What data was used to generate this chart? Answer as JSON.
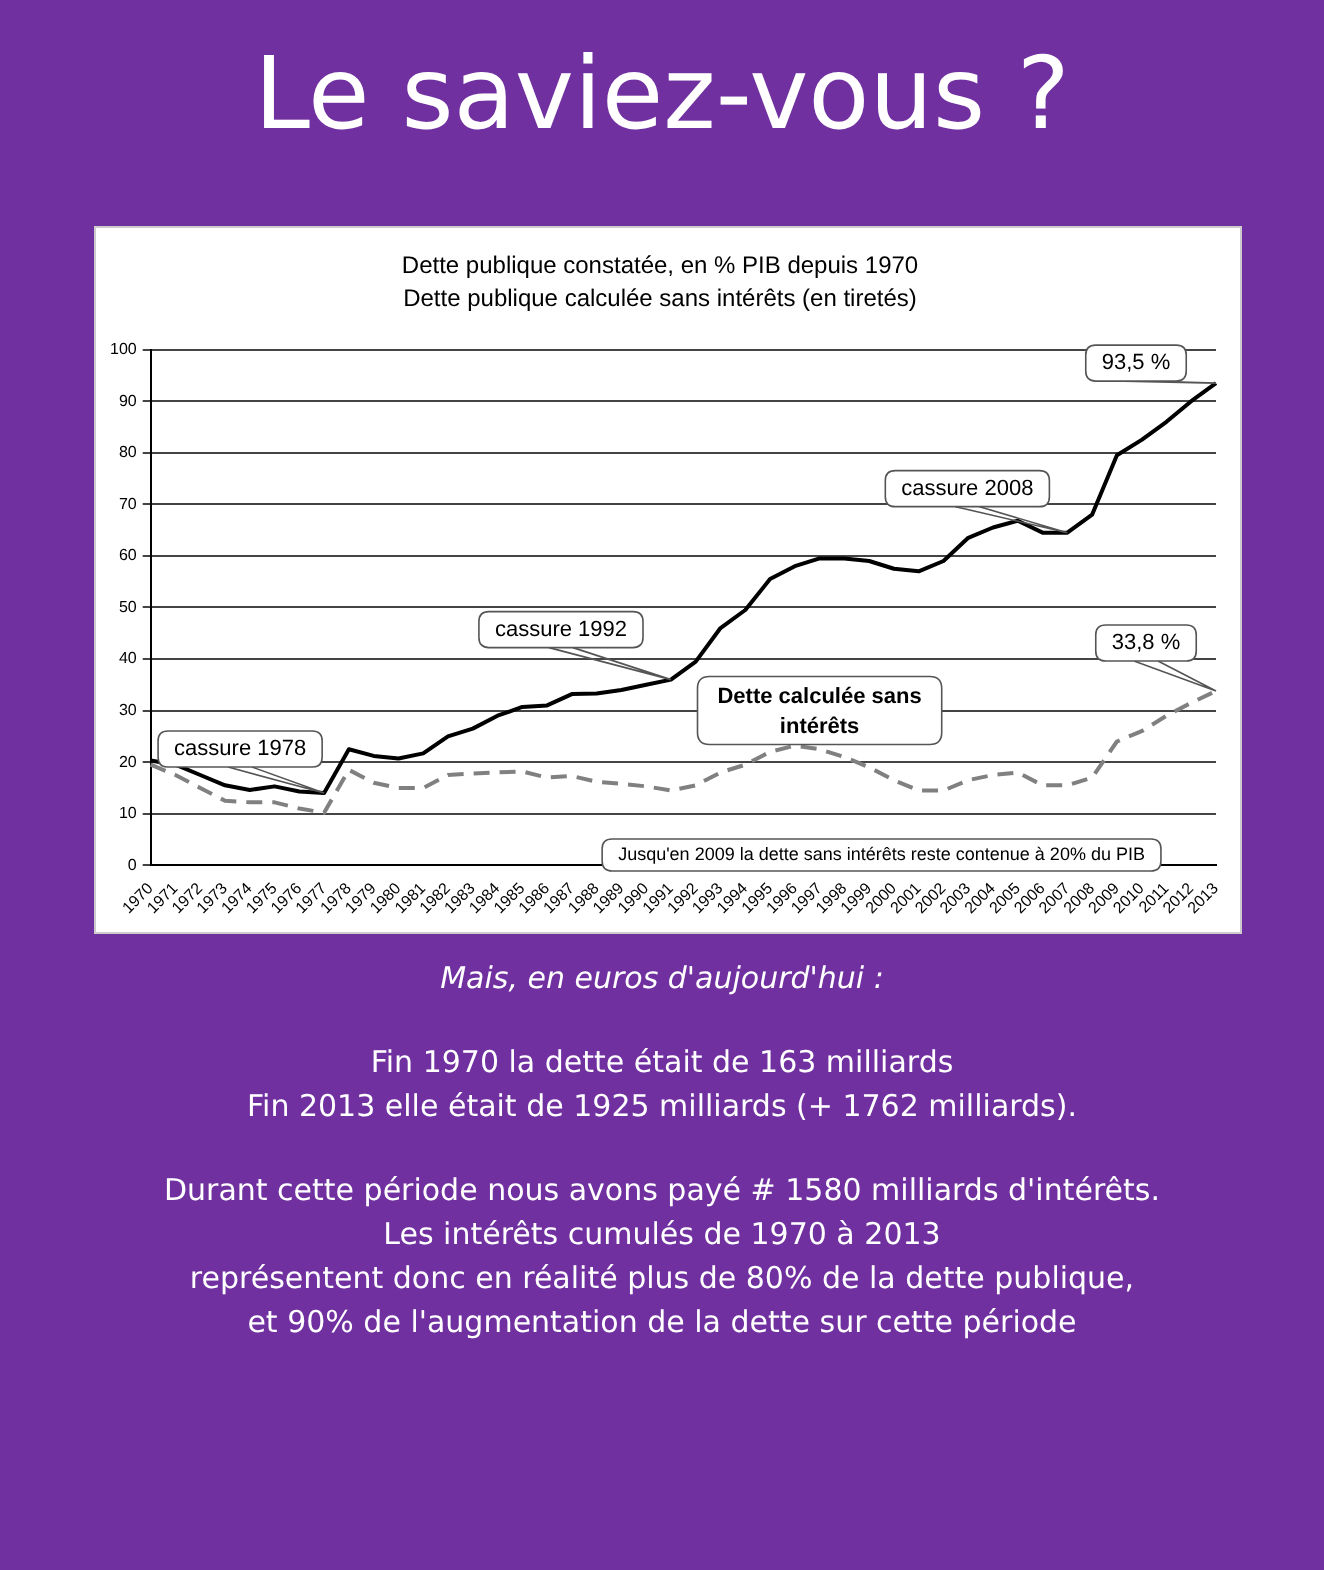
{
  "chart_data": {
    "type": "line",
    "title": "Dette publique constatée, en % PIB depuis 1970",
    "subtitle": "Dette publique calculée sans intérêts (en tiretés)",
    "categories": [
      "1970",
      "1971",
      "1972",
      "1973",
      "1974",
      "1975",
      "1976",
      "1977",
      "1978",
      "1979",
      "1980",
      "1981",
      "1982",
      "1983",
      "1984",
      "1985",
      "1986",
      "1987",
      "1988",
      "1989",
      "1990",
      "1991",
      "1992",
      "1993",
      "1994",
      "1995",
      "1996",
      "1997",
      "1998",
      "1999",
      "2000",
      "2001",
      "2002",
      "2003",
      "2004",
      "2005",
      "2006",
      "2007",
      "2008",
      "2009",
      "2010",
      "2011",
      "2012",
      "2013"
    ],
    "series": [
      {
        "color": "#000000",
        "line_style": "solid",
        "values": [
          20.3,
          19.5,
          17.5,
          15.5,
          14.6,
          15.3,
          14.3,
          14.0,
          22.5,
          21.2,
          20.7,
          21.7,
          25.0,
          26.5,
          29.0,
          30.7,
          31.0,
          33.2,
          33.3,
          34.0,
          35.0,
          36.0,
          39.5,
          46,
          49.5,
          55.5,
          58,
          59.5,
          59.5,
          59,
          57.5,
          57,
          59,
          63.5,
          65.5,
          66.8,
          64.5,
          64.5,
          68,
          79.5,
          82.5,
          86,
          90,
          93.5
        ]
      },
      {
        "name": "Dette calculée sans intérêts",
        "color": "#808080",
        "line_style": "dashed",
        "values": [
          19.5,
          17.5,
          15,
          12.5,
          12.2,
          12.2,
          11,
          10.2,
          18.5,
          16,
          15,
          15,
          17.5,
          17.8,
          18,
          18.2,
          17,
          17.3,
          16.2,
          15.8,
          15.3,
          14.5,
          15.5,
          18,
          19.5,
          22,
          23.2,
          22.5,
          21,
          19,
          16.5,
          14.5,
          14.5,
          16.5,
          17.5,
          18,
          15.5,
          15.5,
          17,
          24,
          26,
          29,
          31.5,
          33.8
        ]
      }
    ],
    "ylim": [
      0,
      100
    ],
    "yticks": [
      0,
      10,
      20,
      30,
      40,
      50,
      60,
      70,
      80,
      90,
      100
    ],
    "grid": "y",
    "legend": false,
    "marker": "none",
    "annotations": [
      "Le saviez-vous ?",
      "Jusqu'en 2009 la dette sans intérêts reste contenue à 20% du PIB",
      {
        "text": "cassure 1978",
        "x": "1977",
        "y": 14.0
      },
      {
        "text": "cassure 1992",
        "x": "1991",
        "y": 36.0
      },
      {
        "text": "cassure 2008",
        "x": "2007",
        "y": 64.5
      },
      {
        "text": "93,5 %",
        "x": "2013",
        "y": 93.5
      },
      {
        "text": "33,8 %",
        "x": "2013",
        "y": 33.8
      },
      "Mais, en euros d'aujourd'hui :",
      "Fin 1970 la dette était de 163 milliards",
      "Fin 2013 elle était de 1925 milliards (+ 1762 milliards).",
      "Durant cette période nous avons payé # 1580 milliards d'intérêts.",
      "Les intérêts cumulés de 1970 à 2013",
      "représentent donc en réalité plus de 80% de la dette publique,",
      "et 90% de l'augmentation de la dette sur cette période"
    ]
  }
}
